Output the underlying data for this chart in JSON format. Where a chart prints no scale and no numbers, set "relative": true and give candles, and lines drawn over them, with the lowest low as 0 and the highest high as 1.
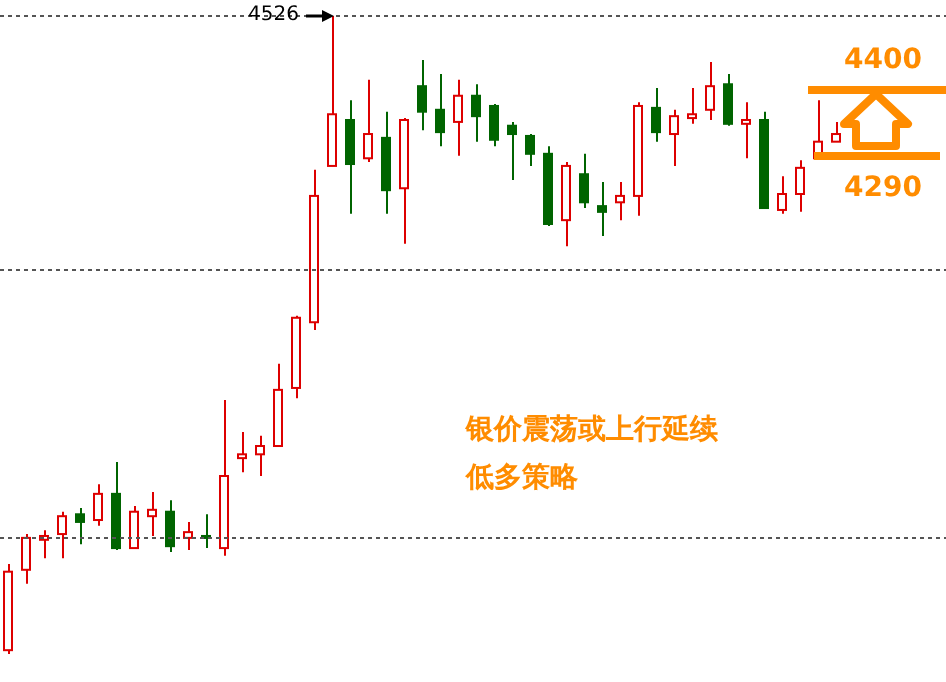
{
  "chart_data": {
    "type": "candlestick",
    "relative": true,
    "categories": [
      null,
      null,
      null,
      null,
      null,
      null,
      null,
      null,
      null,
      null,
      null,
      null,
      null,
      null,
      null,
      null,
      null,
      null,
      null,
      null,
      null,
      null,
      null,
      null,
      null,
      null,
      null,
      null,
      null,
      null,
      null,
      null,
      null,
      null,
      null,
      null,
      null,
      null,
      null,
      null,
      null,
      null,
      null,
      null,
      null,
      null,
      null
    ],
    "ohlc": [
      [
        0.006,
        0.141,
        0,
        0.129
      ],
      [
        0.132,
        0.188,
        0.11,
        0.182
      ],
      [
        0.179,
        0.194,
        0.15,
        0.185
      ],
      [
        0.188,
        0.223,
        0.15,
        0.216
      ],
      [
        0.219,
        0.229,
        0.172,
        0.207
      ],
      [
        0.21,
        0.266,
        0.201,
        0.251
      ],
      [
        0.251,
        0.301,
        0.163,
        0.166
      ],
      [
        0.166,
        0.232,
        0.166,
        0.223
      ],
      [
        0.216,
        0.254,
        0.185,
        0.226
      ],
      [
        0.223,
        0.241,
        0.16,
        0.169
      ],
      [
        0.182,
        0.207,
        0.163,
        0.191
      ],
      [
        0.185,
        0.219,
        0.166,
        0.182
      ],
      [
        0.166,
        0.398,
        0.154,
        0.279
      ],
      [
        0.307,
        0.348,
        0.285,
        0.313
      ],
      [
        0.313,
        0.342,
        0.279,
        0.326
      ],
      [
        0.326,
        0.455,
        0.326,
        0.414
      ],
      [
        0.417,
        0.53,
        0.401,
        0.527
      ],
      [
        0.52,
        0.759,
        0.508,
        0.718
      ],
      [
        0.765,
        1,
        0.765,
        0.846
      ],
      [
        0.837,
        0.868,
        0.69,
        0.768
      ],
      [
        0.777,
        0.9,
        0.771,
        0.815
      ],
      [
        0.809,
        0.85,
        0.69,
        0.727
      ],
      [
        0.73,
        0.84,
        0.643,
        0.837
      ],
      [
        0.89,
        0.931,
        0.821,
        0.85
      ],
      [
        0.853,
        0.909,
        0.796,
        0.818
      ],
      [
        0.834,
        0.9,
        0.781,
        0.875
      ],
      [
        0.875,
        0.893,
        0.803,
        0.843
      ],
      [
        0.859,
        0.862,
        0.796,
        0.806
      ],
      [
        0.828,
        0.834,
        0.743,
        0.815
      ],
      [
        0.812,
        0.815,
        0.765,
        0.784
      ],
      [
        0.784,
        0.796,
        0.671,
        0.674
      ],
      [
        0.68,
        0.771,
        0.639,
        0.765
      ],
      [
        0.752,
        0.784,
        0.699,
        0.708
      ],
      [
        0.702,
        0.74,
        0.655,
        0.693
      ],
      [
        0.708,
        0.74,
        0.68,
        0.718
      ],
      [
        0.718,
        0.865,
        0.687,
        0.859
      ],
      [
        0.856,
        0.887,
        0.803,
        0.818
      ],
      [
        0.815,
        0.853,
        0.765,
        0.843
      ],
      [
        0.84,
        0.887,
        0.831,
        0.846
      ],
      [
        0.853,
        0.928,
        0.837,
        0.89
      ],
      [
        0.893,
        0.909,
        0.828,
        0.831
      ],
      [
        0.831,
        0.865,
        0.777,
        0.837
      ],
      [
        0.837,
        0.85,
        0.699,
        0.699
      ],
      [
        0.696,
        0.749,
        0.69,
        0.721
      ],
      [
        0.721,
        0.774,
        0.693,
        0.762
      ],
      [
        0.777,
        0.868,
        0.777,
        0.803
      ],
      [
        0.803,
        0.834,
        0.803,
        0.815
      ]
    ],
    "colors": [
      "#dd0000",
      "#dd0000",
      "#dd0000",
      "#dd0000",
      "#006400",
      "#dd0000",
      "#006400",
      "#dd0000",
      "#dd0000",
      "#006400",
      "#dd0000",
      "#006400",
      "#dd0000",
      "#dd0000",
      "#dd0000",
      "#dd0000",
      "#dd0000",
      "#dd0000",
      "#dd0000",
      "#006400",
      "#dd0000",
      "#006400",
      "#dd0000",
      "#006400",
      "#006400",
      "#dd0000",
      "#006400",
      "#006400",
      "#006400",
      "#006400",
      "#006400",
      "#dd0000",
      "#006400",
      "#006400",
      "#dd0000",
      "#dd0000",
      "#006400",
      "#dd0000",
      "#dd0000",
      "#dd0000",
      "#006400",
      "#dd0000",
      "#006400",
      "#dd0000",
      "#dd0000",
      "#dd0000",
      "#dd0000"
    ],
    "ref_lines": [
      {
        "axis": "y",
        "value": 1,
        "label": null,
        "color": "#555555",
        "line_style": "dotted"
      },
      {
        "axis": "y",
        "value": 0.602,
        "label": null,
        "color": "#555555",
        "line_style": "dotted"
      },
      {
        "axis": "y",
        "value": 0.182,
        "label": null,
        "color": "#555555",
        "line_style": "dotted"
      }
    ],
    "annotations": [
      "4526",
      "银价震荡或上行延续",
      "低多策略",
      "4400",
      "4290"
    ]
  }
}
